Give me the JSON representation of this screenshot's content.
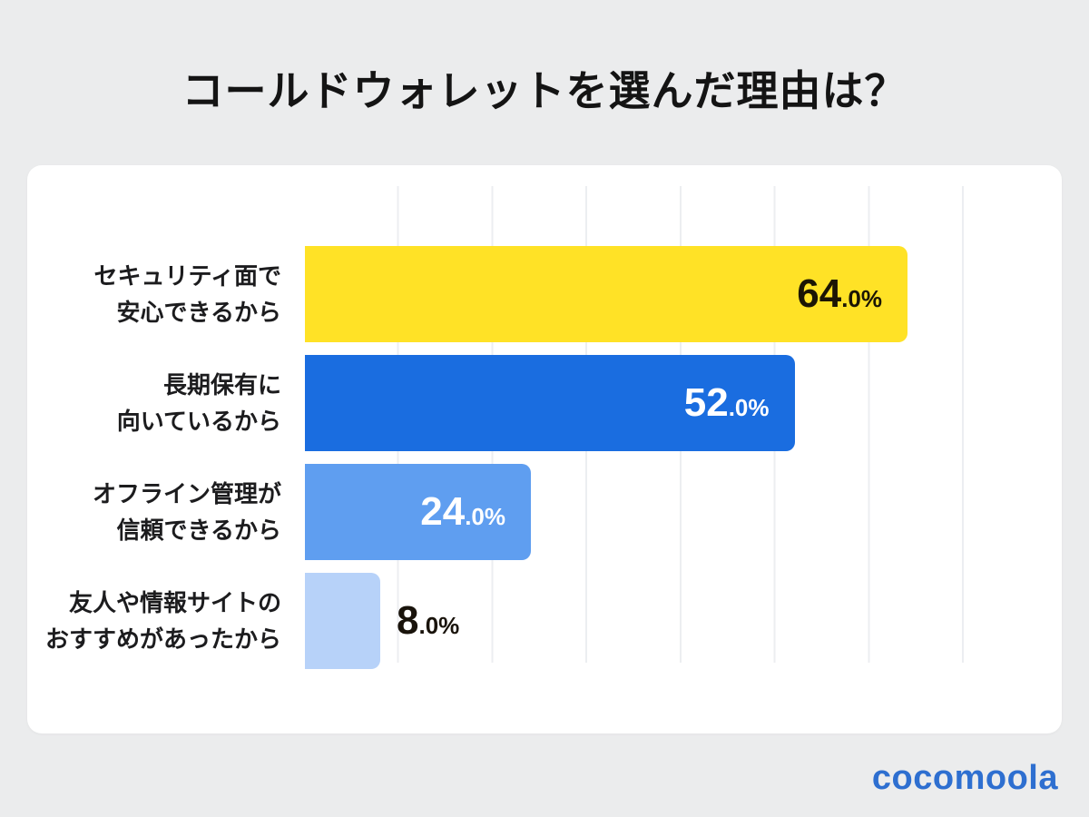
{
  "title": "コールドウォレットを選んだ理由は？",
  "brand": {
    "logo_text": "cocomoola",
    "logo_color": "#2e6fd0"
  },
  "colors": {
    "background": "#ebeced",
    "card": "#ffffff",
    "gridline": "#eceef1",
    "title_text": "#141414"
  },
  "chart_data": {
    "type": "bar",
    "orientation": "horizontal",
    "title": "コールドウォレットを選んだ理由は？",
    "unit": "%",
    "xlim": [
      0,
      77
    ],
    "gridline_interval": 10,
    "legend": "none",
    "categories": [
      "セキュリティ面で安心できるから",
      "長期保有に向いているから",
      "オフライン管理が信頼できるから",
      "友人や情報サイトのおすすめがあったから"
    ],
    "values": [
      64.0,
      52.0,
      24.0,
      8.0
    ],
    "rows": [
      {
        "label_line1": "セキュリティ面で",
        "label_line2": "安心できるから",
        "value": 64.0,
        "value_main": "64",
        "value_suffix": ".0%",
        "bar_color": "#ffe226",
        "value_color": "#1b1504",
        "value_position": "inside"
      },
      {
        "label_line1": "長期保有に",
        "label_line2": "向いているから",
        "value": 52.0,
        "value_main": "52",
        "value_suffix": ".0%",
        "bar_color": "#1a6de0",
        "value_color": "#ffffff",
        "value_position": "inside"
      },
      {
        "label_line1": "オフライン管理が",
        "label_line2": "信頼できるから",
        "value": 24.0,
        "value_main": "24",
        "value_suffix": ".0%",
        "bar_color": "#5f9ef0",
        "value_color": "#ffffff",
        "value_position": "inside"
      },
      {
        "label_line1": "友人や情報サイトの",
        "label_line2": "おすすめがあったから",
        "value": 8.0,
        "value_main": "8",
        "value_suffix": ".0%",
        "bar_color": "#b7d2f9",
        "value_color": "#19130b",
        "value_position": "outside"
      }
    ]
  }
}
